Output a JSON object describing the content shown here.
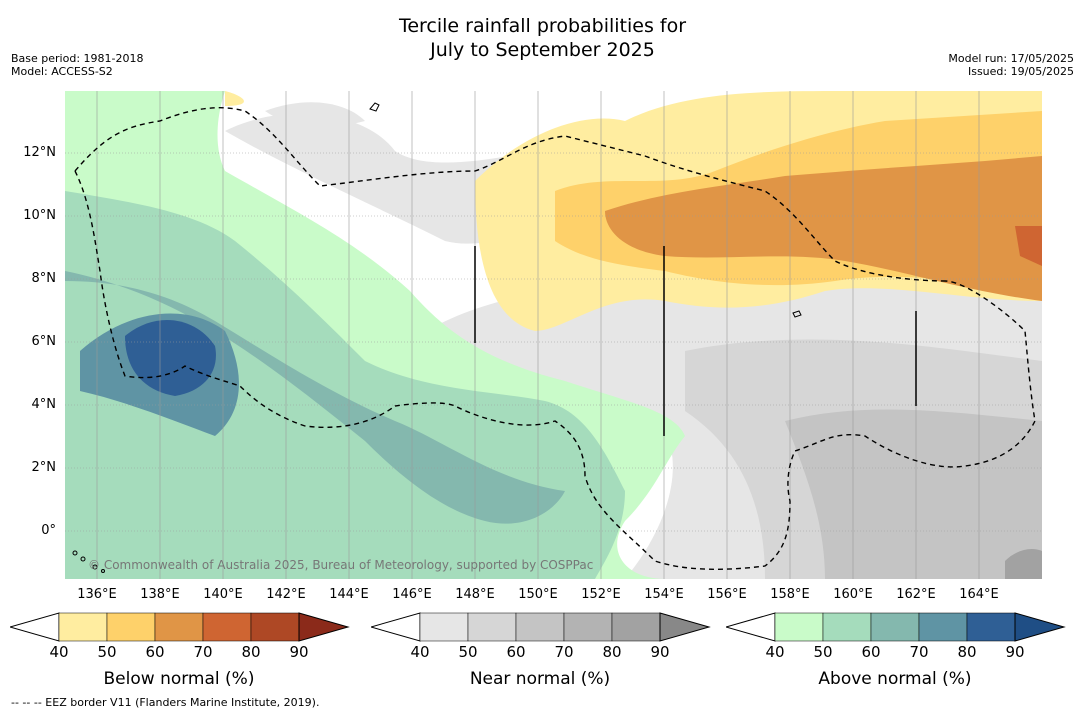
{
  "title_line1": "Tercile rainfall probabilities for",
  "title_line2": "July to September 2025",
  "base_period": "Base period: 1981-2018",
  "model": "Model: ACCESS-S2",
  "model_run": "Model run: 17/05/2025",
  "issued": "Issued: 19/05/2025",
  "credit": "© Commonwealth of Australia 2025, Bureau of Meteorology, supported by COSPPac",
  "footer": "-- -- -- EEZ border V11 (Flanders Marine Institute, 2019).",
  "lat_labels": [
    "12°N",
    "10°N",
    "8°N",
    "6°N",
    "4°N",
    "2°N",
    "0°"
  ],
  "lon_labels": [
    "136°E",
    "138°E",
    "140°E",
    "142°E",
    "144°E",
    "146°E",
    "148°E",
    "150°E",
    "152°E",
    "154°E",
    "156°E",
    "158°E",
    "160°E",
    "162°E",
    "164°E"
  ],
  "colorbars": [
    {
      "label": "Below normal (%)",
      "ticks": [
        "40",
        "50",
        "60",
        "70",
        "80",
        "90"
      ],
      "colors": [
        "#ffffff",
        "#ffeda0",
        "#fed16a",
        "#e09546",
        "#cf6532",
        "#ae4825",
        "#8b2a1a"
      ]
    },
    {
      "label": "Near normal (%)",
      "ticks": [
        "40",
        "50",
        "60",
        "70",
        "80",
        "90"
      ],
      "colors": [
        "#ffffff",
        "#e6e6e6",
        "#d6d6d6",
        "#c4c4c4",
        "#b3b3b3",
        "#a2a2a2",
        "#888888"
      ]
    },
    {
      "label": "Above normal (%)",
      "ticks": [
        "40",
        "50",
        "60",
        "70",
        "80",
        "90"
      ],
      "colors": [
        "#ffffff",
        "#c9fbc9",
        "#a5dcbc",
        "#84b8ae",
        "#5f94a4",
        "#2f5f95",
        "#1f4e85"
      ]
    }
  ]
}
